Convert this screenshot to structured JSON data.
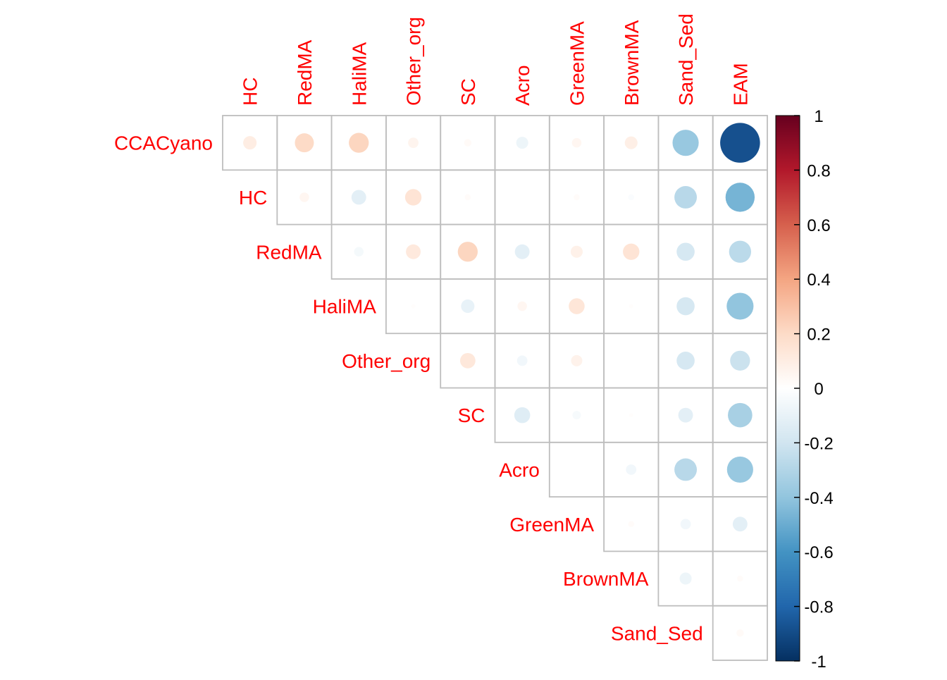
{
  "chart_data": {
    "type": "heatmap",
    "subtype": "correlation-circle-upper-triangle",
    "variables": [
      "CCACyano",
      "HC",
      "RedMA",
      "HaliMA",
      "Other_org",
      "SC",
      "Acro",
      "GreenMA",
      "BrownMA",
      "Sand_Sed",
      "EAM"
    ],
    "row_labels": [
      "CCACyano",
      "HC",
      "RedMA",
      "HaliMA",
      "Other_org",
      "SC",
      "Acro",
      "GreenMA",
      "BrownMA",
      "Sand_Sed"
    ],
    "col_labels": [
      "HC",
      "RedMA",
      "HaliMA",
      "Other_org",
      "SC",
      "Acro",
      "GreenMA",
      "BrownMA",
      "Sand_Sed",
      "EAM"
    ],
    "matrix": [
      [
        0.1,
        0.2,
        0.22,
        0.06,
        0.03,
        -0.08,
        0.05,
        0.09,
        -0.38,
        -0.88
      ],
      [
        null,
        0.05,
        -0.12,
        0.15,
        0.02,
        0.0,
        0.02,
        -0.02,
        -0.28,
        -0.47
      ],
      [
        null,
        null,
        -0.05,
        0.12,
        0.22,
        -0.12,
        0.08,
        0.15,
        -0.18,
        -0.27
      ],
      [
        null,
        null,
        null,
        0.01,
        -0.1,
        0.05,
        0.14,
        0.01,
        -0.18,
        -0.4
      ],
      [
        null,
        null,
        null,
        null,
        0.13,
        -0.06,
        0.07,
        0.0,
        -0.18,
        -0.22
      ],
      [
        null,
        null,
        null,
        null,
        null,
        -0.14,
        -0.04,
        0.01,
        -0.12,
        -0.33
      ],
      [
        null,
        null,
        null,
        null,
        null,
        null,
        0.0,
        -0.06,
        -0.28,
        -0.38
      ],
      [
        null,
        null,
        null,
        null,
        null,
        null,
        null,
        0.02,
        -0.06,
        -0.12
      ],
      [
        null,
        null,
        null,
        null,
        null,
        null,
        null,
        null,
        -0.08,
        0.02
      ],
      [
        null,
        null,
        null,
        null,
        null,
        null,
        null,
        null,
        null,
        0.03
      ]
    ],
    "colorbar": {
      "range": [
        -1,
        1
      ],
      "ticks": [
        "1",
        "0.8",
        "0.6",
        "0.4",
        "0.2",
        "0",
        "-0.2",
        "-0.4",
        "-0.6",
        "-0.8",
        "-1"
      ],
      "colors": [
        "#67001F",
        "#B2182B",
        "#D6604D",
        "#F4A582",
        "#FDDBC7",
        "#FFFFFF",
        "#D1E5F0",
        "#92C5DE",
        "#4393C3",
        "#2166AC",
        "#053061"
      ]
    },
    "label_color": "#FF0000",
    "grid_color": "#BEBEBE"
  }
}
